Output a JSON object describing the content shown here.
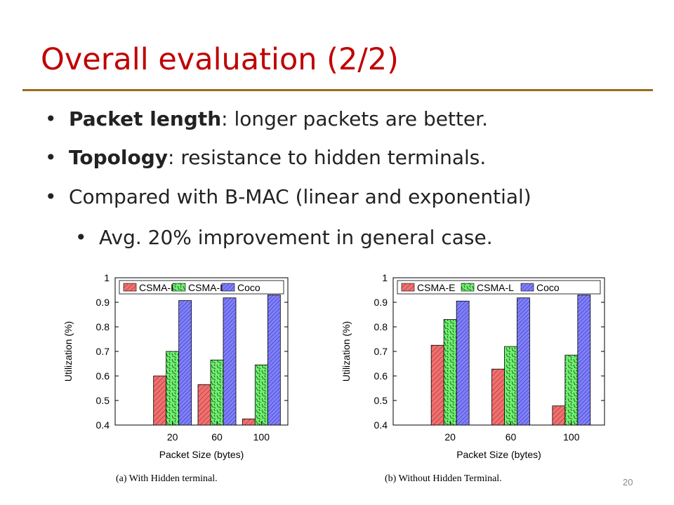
{
  "slide": {
    "title": "Overall evaluation (2/2)",
    "page_number": "20",
    "rule_color": "#9c6a1a",
    "title_color": "#c00000"
  },
  "bullets": [
    {
      "bold": "Packet length",
      "rest": ": longer packets are better.",
      "marker": "•"
    },
    {
      "bold": "Topology",
      "rest": ": resistance to hidden terminals.",
      "marker": "•"
    },
    {
      "bold": "",
      "rest": "Compared with B-MAC (linear and exponential)",
      "marker": "•"
    },
    {
      "bold": "",
      "rest": "Avg. 20% improvement in general case.",
      "marker": "•"
    }
  ],
  "chart_data": [
    {
      "type": "bar",
      "caption": "(a) With Hidden terminal.",
      "categories": [
        "20",
        "60",
        "100"
      ],
      "xlabel": "Packet Size (bytes)",
      "ylabel": "Utilization (%)",
      "ylim": [
        0.4,
        1
      ],
      "yticks": [
        "0.4",
        "0.5",
        "0.6",
        "0.7",
        "0.8",
        "0.9",
        "1"
      ],
      "legend_position": "top",
      "series": [
        {
          "name": "CSMA-E",
          "values": [
            0.6,
            0.565,
            0.425
          ],
          "color": "#f07070",
          "pattern": "diagonal"
        },
        {
          "name": "CSMA-L",
          "values": [
            0.7,
            0.665,
            0.645
          ],
          "color": "#70f070",
          "pattern": "dashes"
        },
        {
          "name": "Coco",
          "values": [
            0.907,
            0.918,
            0.93
          ],
          "color": "#8080ff",
          "pattern": "diagonal-dense"
        }
      ]
    },
    {
      "type": "bar",
      "caption": "(b) Without Hidden Terminal.",
      "categories": [
        "20",
        "60",
        "100"
      ],
      "xlabel": "Packet Size (bytes)",
      "ylabel": "Utilization (%)",
      "ylim": [
        0.4,
        1
      ],
      "yticks": [
        "0.4",
        "0.5",
        "0.6",
        "0.7",
        "0.8",
        "0.9",
        "1"
      ],
      "legend_position": "top",
      "series": [
        {
          "name": "CSMA-E",
          "values": [
            0.725,
            0.628,
            0.478
          ],
          "color": "#f07070",
          "pattern": "diagonal"
        },
        {
          "name": "CSMA-L",
          "values": [
            0.83,
            0.72,
            0.685
          ],
          "color": "#70f070",
          "pattern": "dashes"
        },
        {
          "name": "Coco",
          "values": [
            0.905,
            0.918,
            0.93
          ],
          "color": "#8080ff",
          "pattern": "diagonal-dense"
        }
      ]
    }
  ]
}
